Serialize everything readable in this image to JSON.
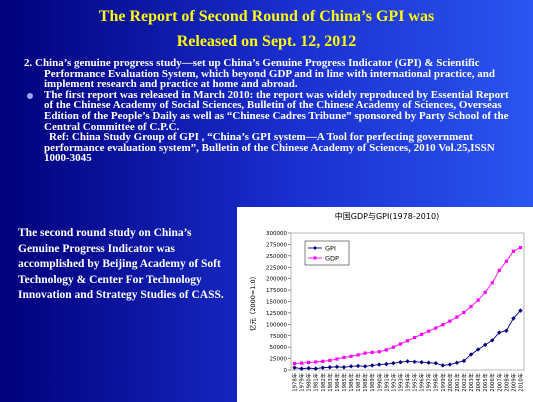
{
  "slide": {
    "title": [
      "The Report of Second Round of China’s GPI was",
      "Released on Sept. 12, 2012"
    ],
    "items": [
      "2.  China’s genuine progress study—set up China’s Genuine Progress Indicator (GPI) & Scientific Performance Evaluation System, which beyond GDP and in line with international practice, and implement research and practice at home and abroad.",
      "The first report was released in March 2010: the report was widely reproduced by Essential Report of the Chinese Academy of Social Sciences, Bulletin of the Chinese Academy of Sciences, Overseas Edition of the People’s Daily as well as “Chinese Cadres Tribune” sponsored by Party School of the Central Committee of C.P.C.",
      "Ref: China Study Group of GPI , “China’s GPI system—A Tool for perfecting government performance evaluation system”, Bulletin of the Chinese Academy of Sciences, 2010 Vol.25,ISSN 1000-3045"
    ],
    "side_note": "The second round study on China’s Genuine Progress Indicator was accomplished by Beijing Academy of Soft Technology & Center For Technology Innovation and Strategy Studies of CASS."
  },
  "chart_data": {
    "type": "line",
    "title": "中国GDP与GPI(1978-2010)",
    "y_label": "亿元（2000=1.0）",
    "categories": [
      "1978年",
      "1979年",
      "1980年",
      "1981年",
      "1982年",
      "1983年",
      "1984年",
      "1985年",
      "1986年",
      "1987年",
      "1988年",
      "1989年",
      "1990年",
      "1991年",
      "1992年",
      "1993年",
      "1994年",
      "1995年",
      "1996年",
      "1997年",
      "1998年",
      "1999年",
      "2000年",
      "2001年",
      "2002年",
      "2003年",
      "2004年",
      "2005年",
      "2006年",
      "2007年",
      "2008年",
      "2009年",
      "2010年"
    ],
    "series": [
      {
        "name": "GPI",
        "color": "#000080",
        "marker": "diamond",
        "values": [
          5000,
          3000,
          4000,
          3000,
          5000,
          6000,
          7000,
          6000,
          8000,
          9000,
          8000,
          10000,
          12000,
          13000,
          15000,
          17000,
          19000,
          18000,
          17000,
          16000,
          15000,
          10000,
          12000,
          16000,
          20000,
          34000,
          45000,
          55000,
          65000,
          82000,
          86000,
          113000,
          130000
        ]
      },
      {
        "name": "GDP",
        "color": "#ff00ff",
        "marker": "square",
        "values": [
          14000,
          15000,
          16500,
          17500,
          19000,
          21000,
          24000,
          27500,
          30000,
          33000,
          37000,
          38500,
          40000,
          44000,
          50000,
          57000,
          64000,
          71000,
          78000,
          85000,
          92000,
          99000,
          107000,
          116000,
          126000,
          139000,
          153000,
          170000,
          191000,
          218000,
          238000,
          260000,
          268000
        ]
      }
    ],
    "ylim": [
      0,
      300000
    ],
    "yticks": [
      0,
      25000,
      50000,
      75000,
      100000,
      125000,
      150000,
      175000,
      200000,
      225000,
      250000,
      275000,
      300000
    ],
    "legend": "upper-left"
  }
}
